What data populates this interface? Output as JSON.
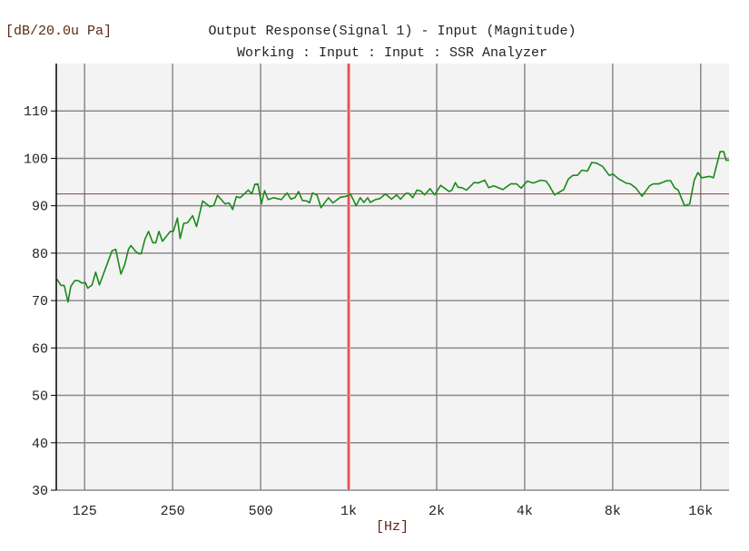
{
  "chart_data": {
    "type": "line",
    "title": "Output Response(Signal 1) - Input (Magnitude)",
    "subtitle": "Working : Input : Input : SSR Analyzer",
    "ylabel": "[dB/20.0u Pa]",
    "xlabel": "[Hz]",
    "x_scale": "log",
    "xlim": [
      100,
      20000
    ],
    "ylim": [
      30,
      120
    ],
    "grid": true,
    "x_ticks": [
      {
        "value": 125,
        "label": "125"
      },
      {
        "value": 250,
        "label": "250"
      },
      {
        "value": 500,
        "label": "500"
      },
      {
        "value": 1000,
        "label": "1k"
      },
      {
        "value": 2000,
        "label": "2k"
      },
      {
        "value": 4000,
        "label": "4k"
      },
      {
        "value": 8000,
        "label": "8k"
      },
      {
        "value": 16000,
        "label": "16k"
      }
    ],
    "y_ticks": [
      {
        "value": 30,
        "label": "30"
      },
      {
        "value": 40,
        "label": "40"
      },
      {
        "value": 50,
        "label": "50"
      },
      {
        "value": 60,
        "label": "60"
      },
      {
        "value": 70,
        "label": "70"
      },
      {
        "value": 80,
        "label": "80"
      },
      {
        "value": 90,
        "label": "90"
      },
      {
        "value": 100,
        "label": "100"
      },
      {
        "value": 110,
        "label": "110"
      }
    ],
    "cursor": {
      "x": 1000,
      "y": 92.5,
      "color": "#e03030",
      "hline_color": "#a03a3a"
    },
    "series": [
      {
        "color": "#1a8a1a",
        "x": [
          100.6,
          103.8,
          106.4,
          109.7,
          112.1,
          115.6,
          119.0,
          122.2,
          125.8,
          128.2,
          132.5,
          136.4,
          140.4,
          155.1,
          159.7,
          166.4,
          171.5,
          176.6,
          180.0,
          186.6,
          191.1,
          195.2,
          200.9,
          206.8,
          213.8,
          218.9,
          224.3,
          230.8,
          245.5,
          251.6,
          259.5,
          265.2,
          272.9,
          280.9,
          292.6,
          301.8,
          316.6,
          335.3,
          345.8,
          356.0,
          377.7,
          389.8,
          401.2,
          412.9,
          425.8,
          453.3,
          466.4,
          477.5,
          489.0,
          503.3,
          515.8,
          530.8,
          554.2,
          588.2,
          615.3,
          635.0,
          654.9,
          674.4,
          695.0,
          720.4,
          734.5,
          752.1,
          779.7,
          804.7,
          852.2,
          883.4,
          937.6,
          983.6,
          1014,
          1061,
          1095,
          1127,
          1162,
          1185,
          1234,
          1279,
          1335,
          1401,
          1459,
          1505,
          1568,
          1606,
          1656,
          1713,
          1767,
          1819,
          1899,
          1968,
          2064,
          2207,
          2255,
          2316,
          2366,
          2441,
          2529,
          2687,
          2771,
          2920,
          3013,
          3136,
          3370,
          3579,
          3753,
          3890,
          4081,
          4282,
          4545,
          4735,
          4849,
          5063,
          5438,
          5636,
          5842,
          6055,
          6279,
          6555,
          6779,
          7041,
          7387,
          7785,
          8012,
          8365,
          8877,
          9203,
          9607,
          10079,
          10698,
          11010,
          11494,
          12260,
          12618,
          13022,
          13403,
          14092,
          14670,
          15205,
          15649,
          16150,
          17145,
          17683,
          18646,
          19190,
          19552,
          20180
        ],
        "y": [
          74.5,
          73.2,
          73.2,
          69.7,
          73.0,
          74.2,
          74.2,
          73.7,
          73.8,
          72.6,
          73.3,
          76.0,
          73.3,
          80.5,
          80.8,
          75.6,
          77.6,
          80.8,
          81.6,
          80.4,
          79.9,
          79.9,
          82.9,
          84.6,
          82.2,
          82.2,
          84.6,
          82.5,
          84.6,
          84.6,
          87.4,
          83.1,
          86.3,
          86.4,
          87.9,
          85.6,
          91.0,
          89.8,
          90.1,
          92.2,
          90.4,
          90.6,
          89.2,
          91.9,
          91.7,
          93.3,
          92.5,
          94.5,
          94.6,
          90.4,
          93.2,
          91.3,
          91.7,
          91.3,
          92.7,
          91.4,
          91.7,
          93.0,
          91.1,
          91.0,
          90.6,
          92.7,
          92.3,
          89.6,
          91.7,
          90.6,
          91.8,
          92.0,
          92.5,
          90.0,
          91.7,
          90.7,
          91.7,
          90.7,
          91.3,
          91.5,
          92.5,
          91.4,
          92.3,
          91.4,
          92.6,
          92.6,
          91.7,
          93.3,
          93.1,
          92.3,
          93.6,
          92.3,
          94.3,
          93.0,
          93.3,
          94.9,
          93.9,
          93.8,
          93.3,
          94.9,
          94.8,
          95.4,
          93.8,
          94.2,
          93.4,
          94.6,
          94.6,
          93.7,
          95.2,
          94.8,
          95.4,
          95.2,
          94.3,
          92.3,
          93.4,
          95.6,
          96.4,
          96.4,
          97.5,
          97.3,
          99.1,
          99.0,
          98.3,
          96.4,
          96.7,
          95.7,
          94.8,
          94.6,
          93.7,
          92.0,
          94.2,
          94.6,
          94.6,
          95.3,
          95.3,
          93.8,
          93.3,
          90.0,
          90.4,
          95.4,
          97.0,
          95.9,
          96.2,
          95.9,
          101.4,
          101.4,
          99.6,
          99.6
        ]
      }
    ]
  }
}
